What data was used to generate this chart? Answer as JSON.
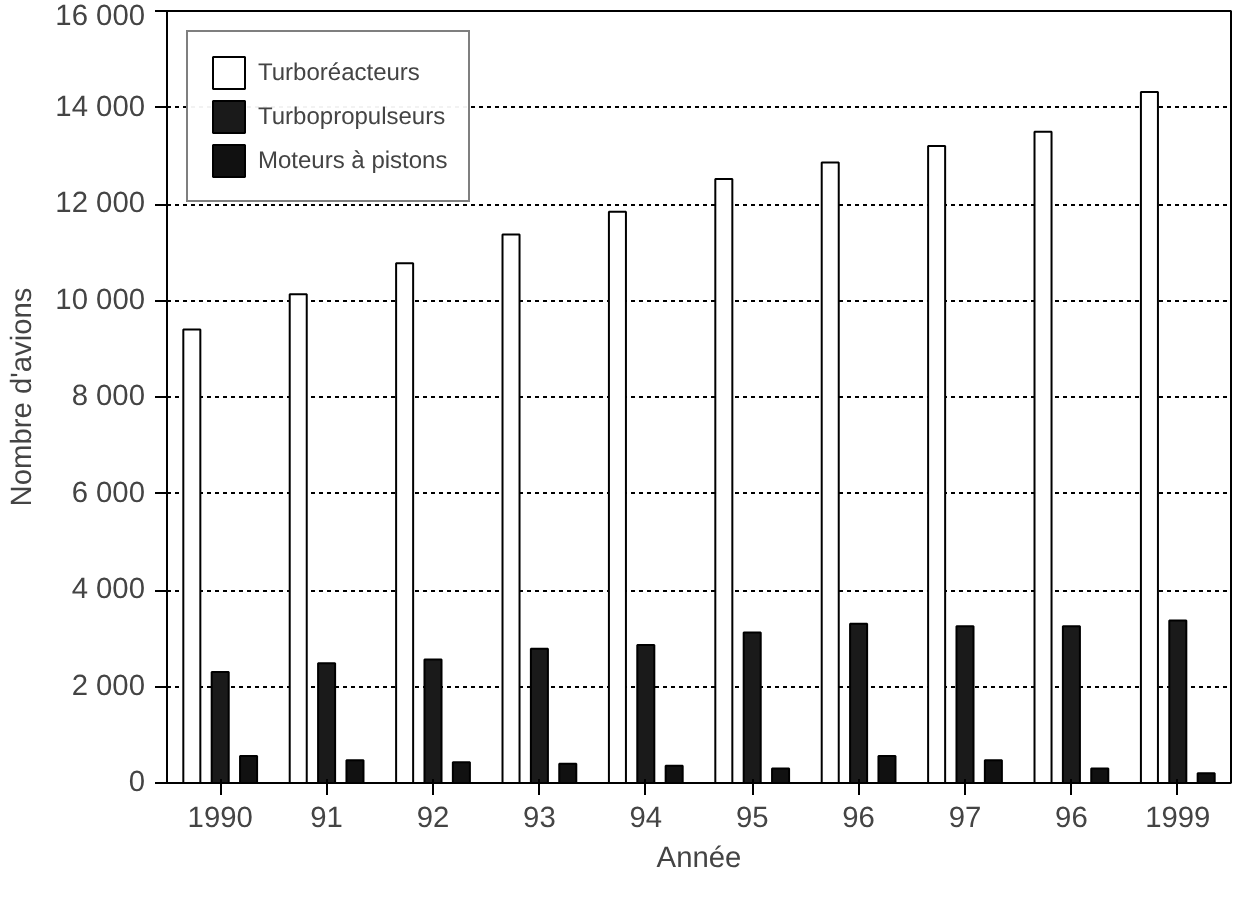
{
  "chart_data": {
    "type": "bar",
    "xlabel": "Année",
    "ylabel": "Nombre d'avions",
    "categories": [
      "1990",
      "91",
      "92",
      "93",
      "94",
      "95",
      "96",
      "97",
      "96",
      "1999"
    ],
    "series": [
      {
        "name": "Turboréacteurs",
        "color": "#ffffff",
        "values": [
          9400,
          10130,
          10770,
          11370,
          11840,
          12520,
          12860,
          13200,
          13500,
          14320
        ]
      },
      {
        "name": "Turbopropulseurs",
        "color": "#1a1a1a",
        "values": [
          2300,
          2480,
          2560,
          2780,
          2860,
          3120,
          3300,
          3250,
          3250,
          3370
        ]
      },
      {
        "name": "Moteurs à pistons",
        "color": "#111111",
        "values": [
          560,
          470,
          430,
          400,
          360,
          300,
          560,
          470,
          300,
          200
        ]
      }
    ],
    "ylim": [
      0,
      16000
    ],
    "yticks": [
      {
        "value": 0,
        "label": "0"
      },
      {
        "value": 2000,
        "label": "2 000"
      },
      {
        "value": 4000,
        "label": "4 000"
      },
      {
        "value": 6000,
        "label": "6 000"
      },
      {
        "value": 8000,
        "label": "8 000"
      },
      {
        "value": 10000,
        "label": "10 000"
      },
      {
        "value": 12000,
        "label": "12 000"
      },
      {
        "value": 14000,
        "label": "14 000"
      },
      {
        "value": 16000,
        "label": "16 000"
      }
    ],
    "grid": "y",
    "legend": "top left"
  }
}
